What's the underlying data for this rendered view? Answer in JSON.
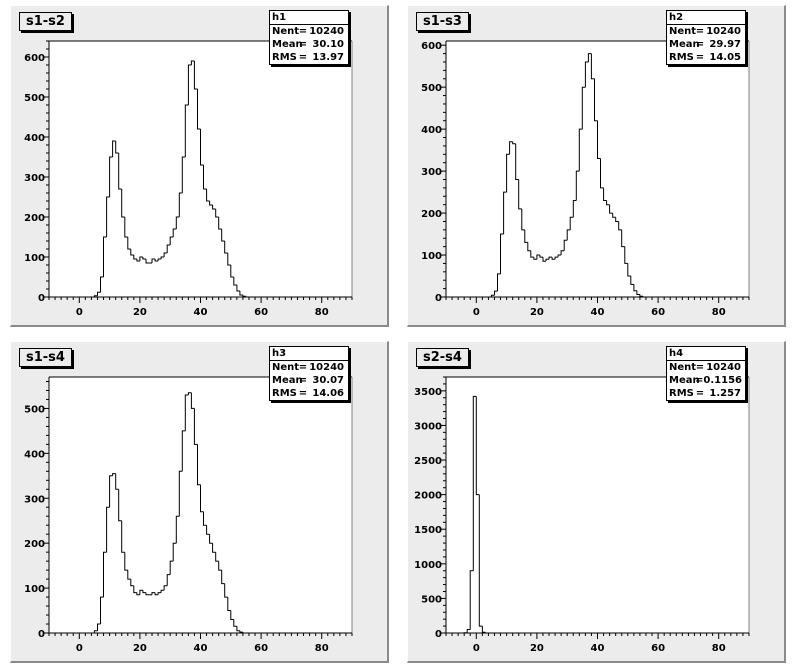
{
  "chart_data": [
    {
      "type": "bar",
      "title": "s1-s2",
      "stats": {
        "name": "h1",
        "entries_label": "Nent",
        "entries": "10240",
        "mean_label": "Mean",
        "mean": "30.10",
        "rms_label": "RMS",
        "rms": "13.97"
      },
      "xlim": [
        -10,
        90
      ],
      "ylim": [
        0,
        640
      ],
      "xticks": [
        0,
        20,
        40,
        60,
        80
      ],
      "xtick_labels": [
        "0",
        "20",
        "40",
        "60",
        "80"
      ],
      "yticks": [
        0,
        100,
        200,
        300,
        400,
        500,
        600
      ],
      "ytick_labels": [
        "0",
        "100",
        "200",
        "300",
        "400",
        "500",
        "600"
      ],
      "bin_start": 2,
      "bin_width": 1,
      "values": [
        0,
        0,
        0,
        3,
        12,
        50,
        150,
        250,
        350,
        390,
        360,
        270,
        200,
        150,
        120,
        105,
        95,
        90,
        100,
        95,
        85,
        85,
        95,
        90,
        95,
        100,
        110,
        130,
        150,
        170,
        200,
        260,
        350,
        480,
        580,
        590,
        520,
        420,
        330,
        270,
        240,
        230,
        220,
        200,
        170,
        140,
        110,
        80,
        50,
        30,
        15,
        5,
        2,
        0
      ]
    },
    {
      "type": "bar",
      "title": "s1-s3",
      "stats": {
        "name": "h2",
        "entries_label": "Nent",
        "entries": "10240",
        "mean_label": "Mean",
        "mean": "29.97",
        "rms_label": "RMS",
        "rms": "14.05"
      },
      "xlim": [
        -10,
        90
      ],
      "ylim": [
        0,
        610
      ],
      "xticks": [
        0,
        20,
        40,
        60,
        80
      ],
      "xtick_labels": [
        "0",
        "20",
        "40",
        "60",
        "80"
      ],
      "yticks": [
        0,
        100,
        200,
        300,
        400,
        500,
        600
      ],
      "ytick_labels": [
        "0",
        "100",
        "200",
        "300",
        "400",
        "500",
        "600"
      ],
      "bin_start": 2,
      "bin_width": 1,
      "values": [
        0,
        0,
        0,
        4,
        14,
        55,
        150,
        250,
        340,
        370,
        365,
        280,
        210,
        160,
        130,
        110,
        95,
        90,
        100,
        95,
        85,
        90,
        95,
        90,
        95,
        100,
        110,
        135,
        160,
        190,
        230,
        300,
        400,
        500,
        560,
        580,
        520,
        420,
        330,
        260,
        230,
        220,
        200,
        190,
        180,
        160,
        120,
        80,
        50,
        30,
        15,
        6,
        2,
        0
      ]
    },
    {
      "type": "bar",
      "title": "s1-s4",
      "stats": {
        "name": "h3",
        "entries_label": "Nent",
        "entries": "10240",
        "mean_label": "Mean",
        "mean": "30.07",
        "rms_label": "RMS",
        "rms": "14.06"
      },
      "xlim": [
        -10,
        90
      ],
      "ylim": [
        0,
        570
      ],
      "xticks": [
        0,
        20,
        40,
        60,
        80
      ],
      "xtick_labels": [
        "0",
        "20",
        "40",
        "60",
        "80"
      ],
      "yticks": [
        0,
        100,
        200,
        300,
        400,
        500
      ],
      "ytick_labels": [
        "0",
        "100",
        "200",
        "300",
        "400",
        "500"
      ],
      "bin_start": 2,
      "bin_width": 1,
      "values": [
        0,
        0,
        0,
        5,
        20,
        80,
        180,
        280,
        350,
        355,
        320,
        250,
        180,
        140,
        120,
        105,
        90,
        85,
        95,
        90,
        85,
        85,
        90,
        85,
        90,
        95,
        105,
        130,
        160,
        200,
        260,
        360,
        450,
        530,
        535,
        500,
        420,
        330,
        270,
        240,
        220,
        200,
        180,
        160,
        140,
        110,
        80,
        50,
        30,
        15,
        5,
        2,
        0,
        0
      ]
    },
    {
      "type": "bar",
      "title": "s2-s4",
      "stats": {
        "name": "h4",
        "entries_label": "Nent",
        "entries": "10240",
        "mean_label": "Mean",
        "mean": "0.1156",
        "rms_label": "RMS",
        "rms": "1.257"
      },
      "xlim": [
        -10,
        90
      ],
      "ylim": [
        0,
        3700
      ],
      "xticks": [
        0,
        20,
        40,
        60,
        80
      ],
      "xtick_labels": [
        "0",
        "20",
        "40",
        "60",
        "80"
      ],
      "yticks": [
        0,
        500,
        1000,
        1500,
        2000,
        2500,
        3000,
        3500
      ],
      "ytick_labels": [
        "0",
        "500",
        "1000",
        "1500",
        "2000",
        "2500",
        "3000",
        "3500"
      ],
      "bin_start": -4,
      "bin_width": 1,
      "values": [
        5,
        50,
        900,
        3420,
        2000,
        100,
        10,
        0
      ]
    }
  ]
}
